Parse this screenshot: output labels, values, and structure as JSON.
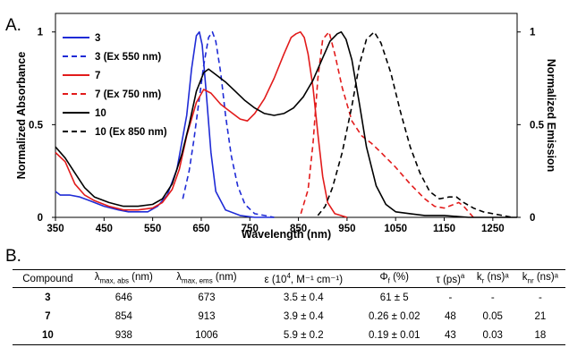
{
  "panel_a_label": "A.",
  "panel_b_label": "B.",
  "chart_data": {
    "type": "line",
    "xlabel": "Wavelength (nm)",
    "ylabel": "Normalized Absorbance",
    "y2label": "Normalized Emission",
    "xlim": [
      350,
      1300
    ],
    "ylim": [
      0,
      1.1
    ],
    "xticks": [
      350,
      450,
      550,
      650,
      750,
      850,
      950,
      1050,
      1150,
      1250
    ],
    "yticks": [
      0,
      0.5,
      1
    ],
    "ytick_labels": [
      "0",
      "0.5",
      "1"
    ],
    "y2ticks": [
      0,
      0.5,
      1
    ],
    "y2tick_labels": [
      "0",
      "0.5",
      "1"
    ],
    "grid": false,
    "legend_position": "top-left",
    "series": [
      {
        "name": "3",
        "color": "#1f2bd6",
        "dash": "solid",
        "x": [
          350,
          360,
          380,
          400,
          420,
          450,
          480,
          500,
          540,
          560,
          580,
          600,
          620,
          630,
          640,
          646,
          652,
          660,
          670,
          680,
          700,
          730,
          760,
          800
        ],
        "y": [
          0.14,
          0.12,
          0.12,
          0.11,
          0.09,
          0.06,
          0.04,
          0.03,
          0.03,
          0.06,
          0.12,
          0.26,
          0.55,
          0.8,
          0.98,
          1.0,
          0.93,
          0.68,
          0.35,
          0.14,
          0.04,
          0.01,
          0.0,
          0.0
        ]
      },
      {
        "name": "3 (Ex 550 nm)",
        "color": "#1f2bd6",
        "dash": "dashed",
        "x": [
          612,
          625,
          635,
          645,
          655,
          665,
          673,
          680,
          690,
          700,
          712,
          725,
          740,
          760,
          780,
          800
        ],
        "y": [
          0.1,
          0.25,
          0.42,
          0.62,
          0.82,
          0.97,
          1.0,
          0.95,
          0.78,
          0.55,
          0.33,
          0.17,
          0.07,
          0.02,
          0.01,
          0.0
        ]
      },
      {
        "name": "7",
        "color": "#e21b1b",
        "dash": "solid",
        "x": [
          350,
          370,
          390,
          410,
          430,
          460,
          490,
          520,
          550,
          570,
          590,
          605,
          620,
          640,
          655,
          670,
          690,
          710,
          730,
          745,
          760,
          780,
          800,
          820,
          835,
          845,
          854,
          862,
          870,
          880,
          890,
          900,
          910,
          925,
          950
        ],
        "y": [
          0.35,
          0.3,
          0.18,
          0.12,
          0.09,
          0.06,
          0.04,
          0.04,
          0.05,
          0.08,
          0.15,
          0.26,
          0.44,
          0.62,
          0.69,
          0.67,
          0.61,
          0.57,
          0.53,
          0.52,
          0.56,
          0.64,
          0.75,
          0.88,
          0.97,
          0.99,
          1.0,
          0.97,
          0.88,
          0.7,
          0.45,
          0.22,
          0.08,
          0.02,
          0.0
        ]
      },
      {
        "name": "7 (Ex 750 nm)",
        "color": "#e21b1b",
        "dash": "dashed",
        "x": [
          855,
          870,
          880,
          890,
          900,
          913,
          925,
          940,
          960,
          980,
          1000,
          1020,
          1050,
          1080,
          1110,
          1130,
          1150,
          1170,
          1180,
          1190,
          1210
        ],
        "y": [
          0.02,
          0.15,
          0.4,
          0.75,
          0.96,
          1.0,
          0.88,
          0.7,
          0.52,
          0.44,
          0.4,
          0.35,
          0.27,
          0.18,
          0.1,
          0.06,
          0.05,
          0.07,
          0.08,
          0.06,
          0.0
        ]
      },
      {
        "name": "10",
        "color": "#000000",
        "dash": "solid",
        "x": [
          350,
          370,
          390,
          410,
          430,
          460,
          490,
          520,
          550,
          570,
          590,
          610,
          625,
          640,
          655,
          665,
          680,
          700,
          720,
          740,
          760,
          780,
          800,
          820,
          840,
          860,
          880,
          900,
          915,
          930,
          938,
          948,
          960,
          975,
          990,
          1010,
          1030,
          1050,
          1080,
          1110,
          1150,
          1200,
          1250,
          1300
        ],
        "y": [
          0.38,
          0.32,
          0.24,
          0.16,
          0.11,
          0.08,
          0.06,
          0.06,
          0.07,
          0.1,
          0.18,
          0.34,
          0.5,
          0.68,
          0.78,
          0.8,
          0.77,
          0.73,
          0.68,
          0.63,
          0.59,
          0.56,
          0.55,
          0.56,
          0.59,
          0.65,
          0.74,
          0.86,
          0.95,
          0.99,
          1.0,
          0.96,
          0.85,
          0.62,
          0.38,
          0.17,
          0.07,
          0.03,
          0.02,
          0.01,
          0.01,
          0.0,
          0.0,
          0.0
        ]
      },
      {
        "name": "10 (Ex 850 nm)",
        "color": "#000000",
        "dash": "dashed",
        "x": [
          890,
          905,
          920,
          940,
          960,
          975,
          990,
          1006,
          1020,
          1040,
          1060,
          1080,
          1100,
          1120,
          1140,
          1160,
          1175,
          1190,
          1210,
          1230,
          1250,
          1270,
          1290
        ],
        "y": [
          0.01,
          0.06,
          0.16,
          0.35,
          0.6,
          0.82,
          0.96,
          1.0,
          0.94,
          0.78,
          0.57,
          0.38,
          0.24,
          0.14,
          0.1,
          0.11,
          0.11,
          0.08,
          0.05,
          0.03,
          0.02,
          0.01,
          0.0
        ]
      }
    ]
  },
  "table": {
    "headers": [
      {
        "main": "Compound",
        "sub": "",
        "sup": "",
        "unit": ""
      },
      {
        "main": "λ",
        "sub": "max, abs",
        "sup": "",
        "unit": " (nm)"
      },
      {
        "main": "λ",
        "sub": "max, ems",
        "sup": "",
        "unit": " (nm)"
      },
      {
        "main": "ε (10",
        "sub": "",
        "sup": "4",
        "unit": ", M⁻¹ cm⁻¹)"
      },
      {
        "main": "Φ",
        "sub": "f",
        "sup": "",
        "unit": " (%)"
      },
      {
        "main": "τ (ps)",
        "sub": "",
        "sup": "a",
        "unit": ""
      },
      {
        "main": "k",
        "sub": "r",
        "sup": "",
        "unit": " (ns)ᵃ"
      },
      {
        "main": "k",
        "sub": "nr",
        "sup": "",
        "unit": " (ns)ᵃ"
      }
    ],
    "rows": [
      [
        "3",
        "646",
        "673",
        "3.5 ± 0.4",
        "61 ± 5",
        "-",
        "-",
        "-"
      ],
      [
        "7",
        "854",
        "913",
        "3.9 ± 0.4",
        "0.26 ± 0.02",
        "48",
        "0.05",
        "21"
      ],
      [
        "10",
        "938",
        "1006",
        "5.9 ± 0.2",
        "0.19 ± 0.01",
        "43",
        "0.03",
        "18"
      ]
    ]
  }
}
